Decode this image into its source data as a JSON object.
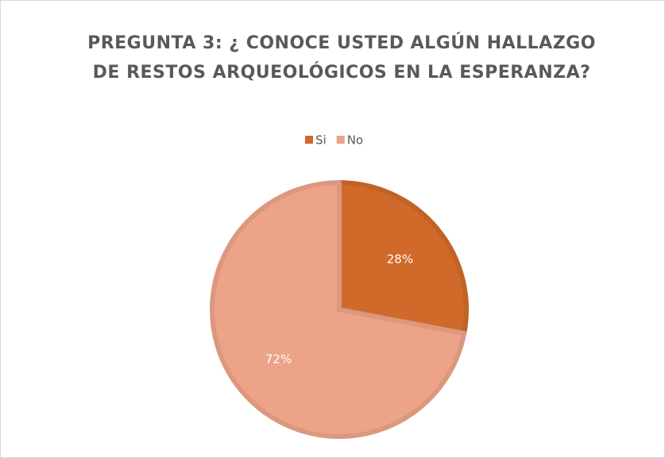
{
  "chart_data": {
    "type": "pie",
    "title": "PREGUNTA 3: ¿ CONOCE USTED ALGÚN HALLAZGO DE RESTOS ARQUEOLÓGICOS EN LA ESPERANZA?",
    "categories": [
      "Si",
      "No"
    ],
    "values": [
      28,
      72
    ],
    "value_labels": [
      "28%",
      "72%"
    ],
    "colors": [
      "#d0692a",
      "#eca387"
    ],
    "legend": "top"
  }
}
